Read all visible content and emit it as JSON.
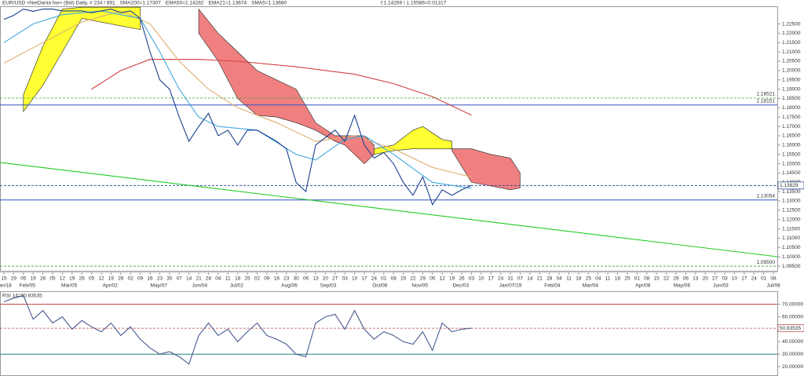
{
  "chart_data": [
    {
      "type": "line",
      "header": [
        {
          "text": "EUR/USD <NetDania fxe> (Bid) Daily, # 234 / 891",
          "color": "#333333"
        },
        {
          "text": "SMA200=1.17307",
          "color": "#d04040"
        },
        {
          "text": "EMA50=1.14282",
          "color": "#e0a040"
        },
        {
          "text": "EMA21=1.13674",
          "color": "#3090d0"
        },
        {
          "text": "SMA5=1.13680",
          "color": "#203060"
        },
        {
          "text": "f:1.14269 \\ 1.15586=0.01317",
          "color": "#333333"
        }
      ],
      "xlim": [
        -0.4,
        79.4
      ],
      "ylim": [
        1.0925,
        1.2345
      ],
      "yticks": [
        {
          "value": 1.095,
          "label": "1.09500"
        },
        {
          "value": 1.1,
          "label": "1.10000"
        },
        {
          "value": 1.105,
          "label": "1.10500"
        },
        {
          "value": 1.11,
          "label": "1.11000"
        },
        {
          "value": 1.115,
          "label": "1.11500"
        },
        {
          "value": 1.12,
          "label": "1.12000"
        },
        {
          "value": 1.125,
          "label": "1.12500"
        },
        {
          "value": 1.13,
          "label": "1.13000"
        },
        {
          "value": 1.135,
          "label": "1.13500"
        },
        {
          "value": 1.14,
          "label": "1.14000"
        },
        {
          "value": 1.145,
          "label": "1.14500"
        },
        {
          "value": 1.15,
          "label": "1.15000"
        },
        {
          "value": 1.155,
          "label": "1.15500"
        },
        {
          "value": 1.16,
          "label": "1.16000"
        },
        {
          "value": 1.165,
          "label": "1.16500"
        },
        {
          "value": 1.17,
          "label": "1.17000"
        },
        {
          "value": 1.175,
          "label": "1.17500"
        },
        {
          "value": 1.18,
          "label": "1.18000"
        },
        {
          "value": 1.185,
          "label": "1.18500"
        },
        {
          "value": 1.19,
          "label": "1.19000"
        },
        {
          "value": 1.195,
          "label": "1.19500"
        },
        {
          "value": 1.2,
          "label": "1.20000"
        },
        {
          "value": 1.205,
          "label": "1.20500"
        },
        {
          "value": 1.21,
          "label": "1.21000"
        },
        {
          "value": 1.215,
          "label": "1.21500"
        },
        {
          "value": 1.22,
          "label": "1.22000"
        },
        {
          "value": 1.225,
          "label": "1.22500"
        }
      ],
      "xticks": [
        {
          "value": 0,
          "label": "15"
        },
        {
          "value": 1,
          "label": "29"
        },
        {
          "value": 2,
          "label": "05"
        },
        {
          "value": 3,
          "label": "19"
        },
        {
          "value": 4,
          "label": "26"
        },
        {
          "value": 5,
          "label": "05"
        },
        {
          "value": 6,
          "label": "12"
        },
        {
          "value": 7,
          "label": "19"
        },
        {
          "value": 8,
          "label": "26"
        },
        {
          "value": 9,
          "label": "05"
        },
        {
          "value": 10,
          "label": "12"
        },
        {
          "value": 11,
          "label": "19"
        },
        {
          "value": 12,
          "label": "26"
        },
        {
          "value": 13,
          "label": "02"
        },
        {
          "value": 14,
          "label": "09"
        },
        {
          "value": 15,
          "label": "16"
        },
        {
          "value": 16,
          "label": "23"
        },
        {
          "value": 17,
          "label": "30"
        },
        {
          "value": 18,
          "label": "07"
        },
        {
          "value": 19,
          "label": "14"
        },
        {
          "value": 20,
          "label": "21"
        },
        {
          "value": 21,
          "label": "28"
        },
        {
          "value": 22,
          "label": "04"
        },
        {
          "value": 23,
          "label": "11"
        },
        {
          "value": 24,
          "label": "18"
        },
        {
          "value": 25,
          "label": "25"
        },
        {
          "value": 26,
          "label": "02"
        },
        {
          "value": 27,
          "label": "09"
        },
        {
          "value": 28,
          "label": "16"
        },
        {
          "value": 29,
          "label": "23"
        },
        {
          "value": 30,
          "label": "30"
        },
        {
          "value": 31,
          "label": "06"
        },
        {
          "value": 32,
          "label": "13"
        },
        {
          "value": 33,
          "label": "20"
        },
        {
          "value": 34,
          "label": "27"
        },
        {
          "value": 35,
          "label": "03"
        },
        {
          "value": 36,
          "label": "10"
        },
        {
          "value": 37,
          "label": "17"
        },
        {
          "value": 38,
          "label": "24"
        },
        {
          "value": 39,
          "label": "01"
        },
        {
          "value": 40,
          "label": "08"
        },
        {
          "value": 41,
          "label": "15"
        },
        {
          "value": 42,
          "label": "22"
        },
        {
          "value": 43,
          "label": "29"
        },
        {
          "value": 44,
          "label": "05"
        },
        {
          "value": 45,
          "label": "12"
        },
        {
          "value": 46,
          "label": "19"
        },
        {
          "value": 47,
          "label": "26"
        },
        {
          "value": 48,
          "label": "03"
        },
        {
          "value": 49,
          "label": "10"
        },
        {
          "value": 50,
          "label": "17"
        },
        {
          "value": 51,
          "label": "24"
        },
        {
          "value": 52,
          "label": "31"
        },
        {
          "value": 53,
          "label": "07"
        },
        {
          "value": 54,
          "label": "14"
        },
        {
          "value": 55,
          "label": "21"
        },
        {
          "value": 56,
          "label": "28"
        },
        {
          "value": 57,
          "label": "04"
        },
        {
          "value": 58,
          "label": "11"
        },
        {
          "value": 59,
          "label": "18"
        },
        {
          "value": 60,
          "label": "25"
        },
        {
          "value": 61,
          "label": "04"
        },
        {
          "value": 62,
          "label": "11"
        },
        {
          "value": 63,
          "label": "18"
        },
        {
          "value": 64,
          "label": "25"
        },
        {
          "value": 65,
          "label": "01"
        },
        {
          "value": 66,
          "label": "08"
        },
        {
          "value": 67,
          "label": "15"
        },
        {
          "value": 68,
          "label": "22"
        },
        {
          "value": 69,
          "label": "29"
        },
        {
          "value": 70,
          "label": "06"
        },
        {
          "value": 71,
          "label": "13"
        },
        {
          "value": 72,
          "label": "20"
        },
        {
          "value": 73,
          "label": "27"
        },
        {
          "value": 74,
          "label": "03"
        },
        {
          "value": 75,
          "label": "10"
        },
        {
          "value": 76,
          "label": "17"
        },
        {
          "value": 77,
          "label": "24"
        },
        {
          "value": 78,
          "label": "01"
        },
        {
          "value": 79,
          "label": "08"
        }
      ],
      "month_ticks": [
        {
          "value": 0,
          "label": "Jan/18"
        },
        {
          "value": 2.4,
          "label": "Feb/05"
        },
        {
          "value": 6.7,
          "label": "Mar/05"
        },
        {
          "value": 10.9,
          "label": "Apr/02"
        },
        {
          "value": 15.9,
          "label": "May/07"
        },
        {
          "value": 20.1,
          "label": "Jun/04"
        },
        {
          "value": 23.9,
          "label": "Jul/02"
        },
        {
          "value": 29.3,
          "label": "Aug/06"
        },
        {
          "value": 33.3,
          "label": "Sep/03"
        },
        {
          "value": 38.6,
          "label": "Oct/08"
        },
        {
          "value": 42.7,
          "label": "Nov/05"
        },
        {
          "value": 46.9,
          "label": "Dec/03"
        },
        {
          "value": 52,
          "label": "Jan/07/19"
        },
        {
          "value": 56.3,
          "label": "Feb/04"
        },
        {
          "value": 60.2,
          "label": "Mar/04"
        },
        {
          "value": 65.6,
          "label": "Apr/08"
        },
        {
          "value": 69.6,
          "label": "May/06"
        },
        {
          "value": 73.6,
          "label": "Jun/03"
        },
        {
          "value": 79,
          "label": "Jul/08"
        }
      ],
      "cloud": [
        {
          "color": "#ffff33",
          "x": [
            2,
            4,
            6,
            8,
            14
          ],
          "top": [
            1.187,
            1.213,
            1.233,
            1.234,
            1.234
          ],
          "bottom": [
            1.178,
            1.192,
            1.21,
            1.228,
            1.222
          ]
        },
        {
          "color": "#f08080",
          "x": [
            20,
            22,
            24,
            26,
            28,
            30,
            32,
            34,
            35,
            37,
            38
          ],
          "top": [
            1.233,
            1.22,
            1.21,
            1.2,
            1.195,
            1.19,
            1.172,
            1.165,
            1.165,
            1.165,
            1.16
          ],
          "bottom": [
            1.22,
            1.205,
            1.185,
            1.176,
            1.175,
            1.172,
            1.168,
            1.162,
            1.16,
            1.15,
            1.155
          ]
        },
        {
          "color": "#ffff33",
          "x": [
            38,
            40,
            42,
            43,
            45,
            46
          ],
          "top": [
            1.158,
            1.16,
            1.168,
            1.17,
            1.163,
            1.162
          ],
          "bottom": [
            1.155,
            1.157,
            1.158,
            1.158,
            1.158,
            1.158
          ]
        },
        {
          "color": "#f08080",
          "x": [
            46,
            48,
            50,
            52,
            53
          ],
          "top": [
            1.158,
            1.158,
            1.155,
            1.153,
            1.145
          ],
          "bottom": [
            1.157,
            1.14,
            1.138,
            1.136,
            1.137
          ]
        }
      ],
      "series": [
        {
          "name": "SMA200",
          "color": "#d04040",
          "x": [
            9,
            12,
            15,
            20,
            24,
            30,
            36,
            40,
            44,
            48
          ],
          "values": [
            1.19,
            1.2,
            1.206,
            1.206,
            1.205,
            1.202,
            1.198,
            1.193,
            1.186,
            1.176
          ]
        },
        {
          "name": "EMA50",
          "color": "#e0b070",
          "x": [
            0,
            4,
            8,
            12,
            15,
            18,
            21,
            24,
            28,
            32,
            36,
            40,
            44,
            48
          ],
          "values": [
            1.204,
            1.215,
            1.226,
            1.232,
            1.225,
            1.205,
            1.19,
            1.18,
            1.172,
            1.162,
            1.165,
            1.158,
            1.148,
            1.1428
          ]
        },
        {
          "name": "EMA21",
          "color": "#40a8e0",
          "x": [
            0,
            3,
            6,
            10,
            14,
            16,
            18,
            20,
            22,
            26,
            30,
            32,
            35,
            37,
            40,
            44,
            48
          ],
          "values": [
            1.215,
            1.225,
            1.23,
            1.232,
            1.228,
            1.21,
            1.19,
            1.175,
            1.17,
            1.168,
            1.155,
            1.152,
            1.163,
            1.165,
            1.155,
            1.14,
            1.1367
          ]
        },
        {
          "name": "EUR/USD",
          "color": "#1a3f8f",
          "x": [
            0,
            1,
            2,
            3,
            4,
            5,
            6,
            7,
            8,
            9,
            10,
            11,
            12,
            13,
            14,
            15,
            16,
            17,
            18,
            19,
            20,
            21,
            22,
            23,
            24,
            25,
            26,
            27,
            28,
            29,
            30,
            31,
            32,
            33,
            34,
            35,
            36,
            37,
            38,
            39,
            40,
            41,
            42,
            43,
            44,
            45,
            46,
            47,
            48
          ],
          "values": [
            1.2275,
            1.2296,
            1.233,
            1.2318,
            1.233,
            1.233,
            1.232,
            1.232,
            1.232,
            1.231,
            1.232,
            1.233,
            1.231,
            1.232,
            1.228,
            1.21,
            1.195,
            1.19,
            1.175,
            1.162,
            1.17,
            1.177,
            1.165,
            1.168,
            1.16,
            1.168,
            1.168,
            1.165,
            1.162,
            1.158,
            1.14,
            1.135,
            1.16,
            1.164,
            1.168,
            1.162,
            1.176,
            1.16,
            1.153,
            1.156,
            1.15,
            1.14,
            1.133,
            1.143,
            1.128,
            1.136,
            1.133,
            1.136,
            1.1383
          ]
        },
        {
          "name": "Trend",
          "color": "#22cc22",
          "x": [
            -0.4,
            79.4
          ],
          "values": [
            1.1507,
            1.1001
          ]
        }
      ],
      "levels": [
        {
          "value": 1.18521,
          "label": "1.18521",
          "color": "#33aa33",
          "dashed": true
        },
        {
          "value": 1.18151,
          "label": "1.18151",
          "color": "#3050c0",
          "dashed": false
        },
        {
          "value": 1.13829,
          "label": "1.13829",
          "color": "#1a3f8f",
          "dashed": true,
          "boxed": true
        },
        {
          "value": 1.13054,
          "label": "1.13054",
          "color": "#3050c0",
          "dashed": false
        },
        {
          "value": 1.095,
          "label": "1.09500",
          "color": "#33aa33",
          "dashed": true
        }
      ]
    },
    {
      "type": "line",
      "header": [
        {
          "text": "RSI 14=50.83535",
          "color": "#333333"
        }
      ],
      "xlim": [
        -0.4,
        79.4
      ],
      "ylim": [
        12.5,
        80.5
      ],
      "yticks": [
        {
          "value": 20,
          "label": "20.00000"
        },
        {
          "value": 30,
          "label": "30.00000"
        },
        {
          "value": 40,
          "label": "40.00000"
        },
        {
          "value": 60,
          "label": "60.00000"
        },
        {
          "value": 70,
          "label": "70.00000"
        }
      ],
      "series": [
        {
          "name": "RSI 14",
          "color": "#4a5a90",
          "x": [
            0,
            1,
            2,
            3,
            4,
            5,
            6,
            7,
            8,
            9,
            10,
            11,
            12,
            13,
            14,
            15,
            16,
            17,
            18,
            19,
            20,
            21,
            22,
            23,
            24,
            25,
            26,
            27,
            28,
            29,
            30,
            31,
            32,
            33,
            34,
            35,
            36,
            37,
            38,
            39,
            40,
            41,
            42,
            43,
            44,
            45,
            46,
            47,
            48
          ],
          "values": [
            72,
            75,
            77,
            58,
            65,
            55,
            60,
            50,
            57,
            52,
            48,
            55,
            45,
            52,
            42,
            35,
            30,
            32,
            28,
            22,
            45,
            55,
            45,
            50,
            40,
            48,
            55,
            45,
            42,
            38,
            30,
            28,
            55,
            60,
            62,
            50,
            65,
            50,
            42,
            48,
            45,
            40,
            38,
            48,
            33,
            55,
            48,
            50,
            50.83535
          ]
        }
      ],
      "levels": [
        {
          "value": 70,
          "color": "#c04040",
          "dashed": false
        },
        {
          "value": 50.83535,
          "label": "50.83535",
          "color": "#c04040",
          "dashed": true,
          "boxed": true
        },
        {
          "value": 30,
          "color": "#208080",
          "dashed": false
        }
      ]
    }
  ]
}
